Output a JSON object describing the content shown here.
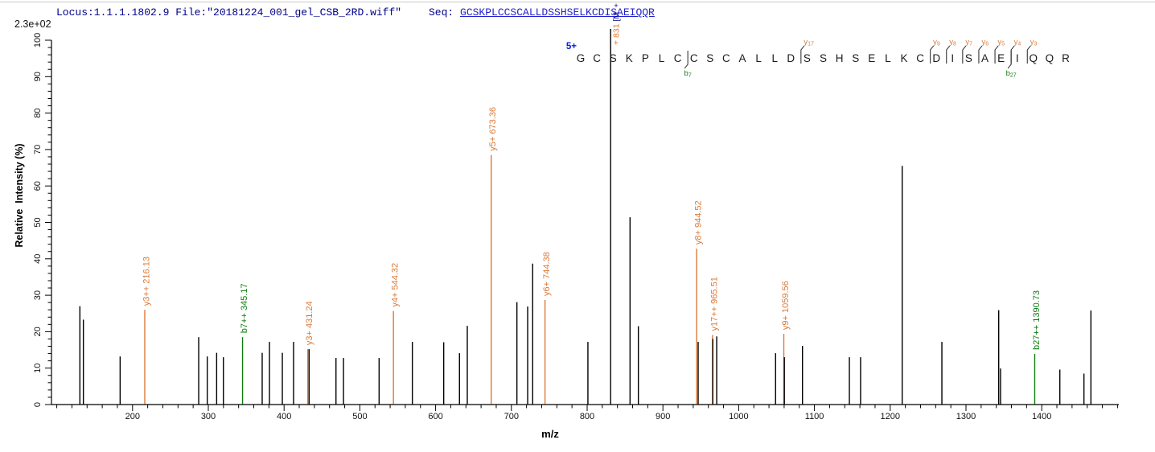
{
  "header": {
    "locus_file": "Locus:1.1.1.1802.9 File:\"20181224_001_gel_CSB_2RD.wiff\"",
    "seq_prefix": "Seq: ",
    "sequence_link": "GCSKPLCCSCALLDSSHSELKCDISAEIQQR"
  },
  "y_axis": {
    "scale_label": "2.3e+02",
    "title": "Relative  Intensity (%)",
    "major_ticks": [
      0,
      10,
      20,
      30,
      40,
      50,
      60,
      70,
      80,
      90,
      100
    ],
    "minor_step": 2,
    "range": [
      0,
      100
    ]
  },
  "x_axis": {
    "title": "m/z",
    "major_ticks": [
      200,
      300,
      400,
      500,
      600,
      700,
      800,
      900,
      1000,
      1100,
      1200,
      1300,
      1400
    ],
    "minor_step": 20,
    "range": [
      93,
      1500
    ]
  },
  "precursor": {
    "charge_label": "5+",
    "mz": 831,
    "intensity_pct": 100,
    "rot_label_orange": "+ 831 ",
    "rot_label_navy": "[M",
    "label_top": "+"
  },
  "peptide": {
    "sequence": "GCSKPLCCSCALLDSSHSELKCDISAEIQQR",
    "precursor_divider_after_residue": 2,
    "y_ion_markers": [
      {
        "label": "y17",
        "after_residue": 14
      },
      {
        "label": "y9",
        "after_residue": 22
      },
      {
        "label": "y8",
        "after_residue": 23
      },
      {
        "label": "y7",
        "after_residue": 24
      },
      {
        "label": "y6",
        "after_residue": 25
      },
      {
        "label": "y5",
        "after_residue": 26
      },
      {
        "label": "y4",
        "after_residue": 27
      },
      {
        "label": "y3",
        "after_residue": 28
      }
    ],
    "b_ion_markers": [
      {
        "label": "b7",
        "after_residue": 7
      },
      {
        "label": "b27",
        "after_residue": 27
      }
    ]
  },
  "colors": {
    "y_ion": "#DB7A38",
    "b_ion": "#0E7C0E",
    "unassigned": "#000000",
    "header_navy": "#00008B",
    "sequence_blue": "#2222CC",
    "charge_blue": "#0022DD"
  },
  "chart_data": {
    "type": "bar",
    "title": "MS/MS fragment spectrum",
    "xlabel": "m/z",
    "ylabel": "Relative  Intensity (%)",
    "xlim": [
      93,
      1500
    ],
    "ylim": [
      0,
      100
    ],
    "grid": false,
    "peaks": [
      {
        "mz": 130.5,
        "pct": 27.0,
        "ion": null,
        "label": null
      },
      {
        "mz": 135.1,
        "pct": 23.3,
        "ion": null,
        "label": null
      },
      {
        "mz": 183.6,
        "pct": 13.2,
        "ion": null,
        "label": null
      },
      {
        "mz": 216.13,
        "pct": 26.0,
        "ion": "y",
        "label": "y3++ 216.13"
      },
      {
        "mz": 287.3,
        "pct": 18.5,
        "ion": null,
        "label": null
      },
      {
        "mz": 298.6,
        "pct": 13.2,
        "ion": null,
        "label": null
      },
      {
        "mz": 311.0,
        "pct": 14.2,
        "ion": null,
        "label": null
      },
      {
        "mz": 319.9,
        "pct": 13.0,
        "ion": null,
        "label": null
      },
      {
        "mz": 345.17,
        "pct": 18.5,
        "ion": "b",
        "label": "b7++ 345.17"
      },
      {
        "mz": 371.1,
        "pct": 14.2,
        "ion": null,
        "label": null
      },
      {
        "mz": 380.7,
        "pct": 17.2,
        "ion": null,
        "label": null
      },
      {
        "mz": 397.7,
        "pct": 14.2,
        "ion": null,
        "label": null
      },
      {
        "mz": 412.5,
        "pct": 17.2,
        "ion": null,
        "label": null
      },
      {
        "mz": 431.24,
        "pct": 15.2,
        "ion": "y",
        "label": "y3+ 431.24"
      },
      {
        "mz": 433.0,
        "pct": 15.2,
        "ion": null,
        "label": null
      },
      {
        "mz": 468.5,
        "pct": 12.8,
        "ion": null,
        "label": null
      },
      {
        "mz": 478.4,
        "pct": 12.8,
        "ion": null,
        "label": null
      },
      {
        "mz": 525.4,
        "pct": 12.8,
        "ion": null,
        "label": null
      },
      {
        "mz": 544.32,
        "pct": 25.7,
        "ion": "y",
        "label": "y4+ 544.32"
      },
      {
        "mz": 569.3,
        "pct": 17.2,
        "ion": null,
        "label": null
      },
      {
        "mz": 610.7,
        "pct": 17.1,
        "ion": null,
        "label": null
      },
      {
        "mz": 631.5,
        "pct": 14.1,
        "ion": null,
        "label": null
      },
      {
        "mz": 641.8,
        "pct": 21.6,
        "ion": null,
        "label": null
      },
      {
        "mz": 673.36,
        "pct": 68.5,
        "ion": "y",
        "label": "y5+ 673.36"
      },
      {
        "mz": 707.3,
        "pct": 28.1,
        "ion": null,
        "label": null
      },
      {
        "mz": 721.5,
        "pct": 26.9,
        "ion": null,
        "label": null
      },
      {
        "mz": 728.1,
        "pct": 38.7,
        "ion": null,
        "label": null
      },
      {
        "mz": 744.38,
        "pct": 28.7,
        "ion": "y",
        "label": "y6+ 744.38"
      },
      {
        "mz": 801.0,
        "pct": 17.2,
        "ion": null,
        "label": null
      },
      {
        "mz": 831.0,
        "pct": 100.0,
        "ion": "precursor",
        "label": null
      },
      {
        "mz": 856.6,
        "pct": 51.4,
        "ion": null,
        "label": null
      },
      {
        "mz": 867.6,
        "pct": 21.5,
        "ion": null,
        "label": null
      },
      {
        "mz": 944.52,
        "pct": 42.8,
        "ion": "y",
        "label": "y8+ 944.52"
      },
      {
        "mz": 946.5,
        "pct": 17.2,
        "ion": null,
        "label": null
      },
      {
        "mz": 965.51,
        "pct": 19.1,
        "ion": "y",
        "label": "y17++ 965.51"
      },
      {
        "mz": 965.8,
        "pct": 18.0,
        "ion": null,
        "label": null
      },
      {
        "mz": 971.0,
        "pct": 18.7,
        "ion": null,
        "label": null
      },
      {
        "mz": 1048.7,
        "pct": 14.1,
        "ion": null,
        "label": null
      },
      {
        "mz": 1059.56,
        "pct": 19.4,
        "ion": "y",
        "label": "y9+ 1059.56"
      },
      {
        "mz": 1060.3,
        "pct": 13.0,
        "ion": null,
        "label": null
      },
      {
        "mz": 1084.2,
        "pct": 16.1,
        "ion": null,
        "label": null
      },
      {
        "mz": 1146.1,
        "pct": 13.0,
        "ion": null,
        "label": null
      },
      {
        "mz": 1160.9,
        "pct": 13.0,
        "ion": null,
        "label": null
      },
      {
        "mz": 1215.8,
        "pct": 65.5,
        "ion": null,
        "label": null
      },
      {
        "mz": 1268.2,
        "pct": 17.2,
        "ion": null,
        "label": null
      },
      {
        "mz": 1343.2,
        "pct": 25.9,
        "ion": null,
        "label": null
      },
      {
        "mz": 1345.6,
        "pct": 9.9,
        "ion": null,
        "label": null
      },
      {
        "mz": 1390.73,
        "pct": 13.9,
        "ion": "b",
        "label": "b27++ 1390.73"
      },
      {
        "mz": 1423.9,
        "pct": 9.6,
        "ion": null,
        "label": null
      },
      {
        "mz": 1455.7,
        "pct": 8.5,
        "ion": null,
        "label": null
      },
      {
        "mz": 1464.9,
        "pct": 25.8,
        "ion": null,
        "label": null
      }
    ]
  }
}
